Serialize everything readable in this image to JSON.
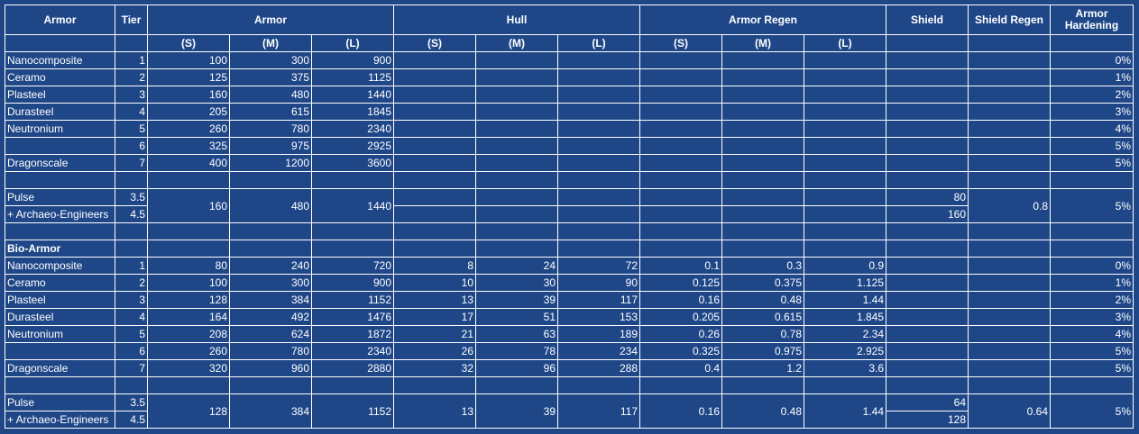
{
  "headers": {
    "armor": "Armor",
    "tier": "Tier",
    "armor_group": "Armor",
    "hull_group": "Hull",
    "regen_group": "Armor Regen",
    "shield": "Shield",
    "shield_regen": "Shield Regen",
    "hardening": "Armor Hardening",
    "sizes": [
      "(S)",
      "(M)",
      "(L)"
    ]
  },
  "sections": [
    {
      "title": "",
      "rows": [
        [
          "Nanocomposite",
          "1",
          "100",
          "300",
          "900",
          "",
          "",
          "",
          "",
          "",
          "",
          "",
          "",
          "0%"
        ],
        [
          "Ceramo",
          "2",
          "125",
          "375",
          "1125",
          "",
          "",
          "",
          "",
          "",
          "",
          "",
          "",
          "1%"
        ],
        [
          "Plasteel",
          "3",
          "160",
          "480",
          "1440",
          "",
          "",
          "",
          "",
          "",
          "",
          "",
          "",
          "2%"
        ],
        [
          "Durasteel",
          "4",
          "205",
          "615",
          "1845",
          "",
          "",
          "",
          "",
          "",
          "",
          "",
          "",
          "3%"
        ],
        [
          "Neutronium",
          "5",
          "260",
          "780",
          "2340",
          "",
          "",
          "",
          "",
          "",
          "",
          "",
          "",
          "4%"
        ],
        [
          "",
          "6",
          "325",
          "975",
          "2925",
          "",
          "",
          "",
          "",
          "",
          "",
          "",
          "",
          "5%"
        ],
        [
          "Dragonscale",
          "7",
          "400",
          "1200",
          "3600",
          "",
          "",
          "",
          "",
          "",
          "",
          "",
          "",
          "5%"
        ]
      ],
      "pulse": {
        "rows": [
          {
            "name": "Pulse",
            "tier": "3.5",
            "shield": "80"
          },
          {
            "name": "+ Archaeo-Engineers",
            "tier": "4.5",
            "shield": "160"
          }
        ],
        "armor": [
          "160",
          "480",
          "1440"
        ],
        "hull": [],
        "regen": [],
        "shield_regen": "0.8",
        "hardening": "5%"
      }
    },
    {
      "title": "Bio-Armor",
      "rows": [
        [
          "Nanocomposite",
          "1",
          "80",
          "240",
          "720",
          "8",
          "24",
          "72",
          "0.1",
          "0.3",
          "0.9",
          "",
          "",
          "0%"
        ],
        [
          "Ceramo",
          "2",
          "100",
          "300",
          "900",
          "10",
          "30",
          "90",
          "0.125",
          "0.375",
          "1.125",
          "",
          "",
          "1%"
        ],
        [
          "Plasteel",
          "3",
          "128",
          "384",
          "1152",
          "13",
          "39",
          "117",
          "0.16",
          "0.48",
          "1.44",
          "",
          "",
          "2%"
        ],
        [
          "Durasteel",
          "4",
          "164",
          "492",
          "1476",
          "17",
          "51",
          "153",
          "0.205",
          "0.615",
          "1.845",
          "",
          "",
          "3%"
        ],
        [
          "Neutronium",
          "5",
          "208",
          "624",
          "1872",
          "21",
          "63",
          "189",
          "0.26",
          "0.78",
          "2.34",
          "",
          "",
          "4%"
        ],
        [
          "",
          "6",
          "260",
          "780",
          "2340",
          "26",
          "78",
          "234",
          "0.325",
          "0.975",
          "2.925",
          "",
          "",
          "5%"
        ],
        [
          "Dragonscale",
          "7",
          "320",
          "960",
          "2880",
          "32",
          "96",
          "288",
          "0.4",
          "1.2",
          "3.6",
          "",
          "",
          "5%"
        ]
      ],
      "pulse": {
        "rows": [
          {
            "name": "Pulse",
            "tier": "3.5",
            "shield": "64"
          },
          {
            "name": "+ Archaeo-Engineers",
            "tier": "4.5",
            "shield": "128"
          }
        ],
        "armor": [
          "128",
          "384",
          "1152"
        ],
        "hull": [
          "13",
          "39",
          "117"
        ],
        "regen": [
          "0.16",
          "0.48",
          "1.44"
        ],
        "shield_regen": "0.64",
        "hardening": "5%"
      }
    }
  ]
}
